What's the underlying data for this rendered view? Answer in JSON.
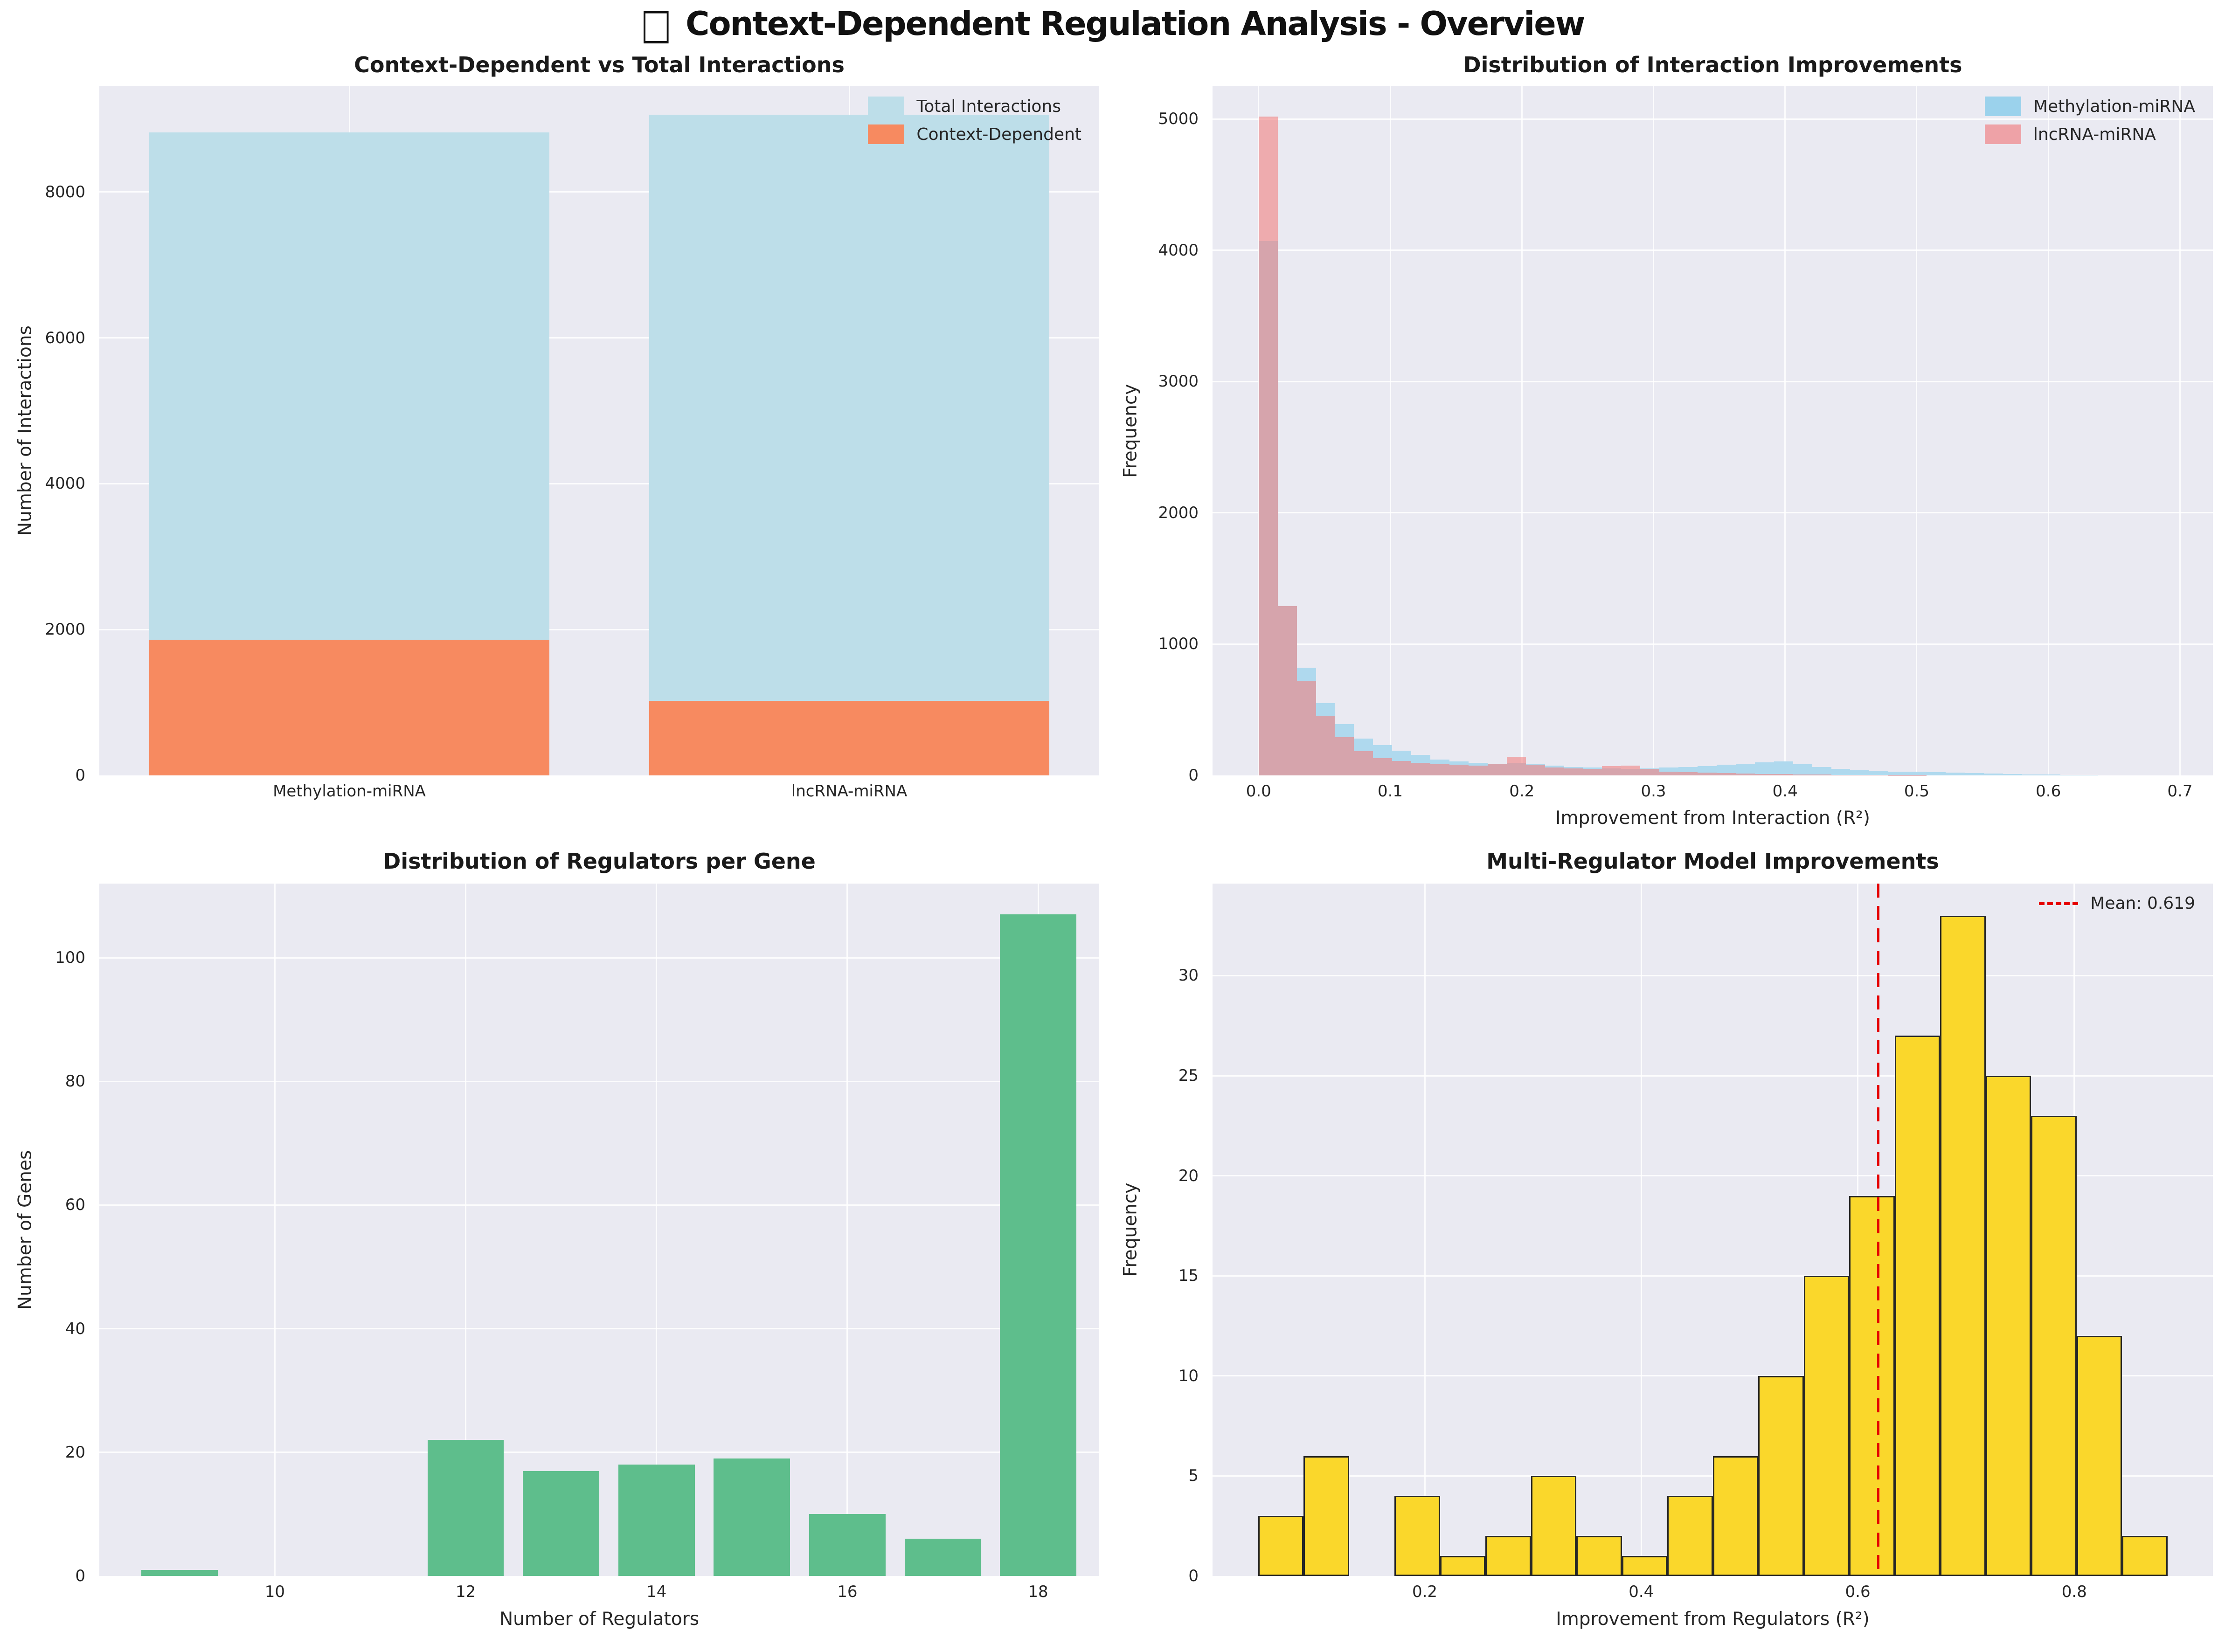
{
  "suptitle_glyph": "□",
  "suptitle": "Context-Dependent Regulation Analysis - Overview",
  "chart_data": [
    {
      "id": "interactions",
      "type": "grouped_overlay_bar",
      "title": "Context-Dependent vs Total Interactions",
      "ylabel": "Number of Interactions",
      "categories": [
        "Methylation-miRNA",
        "lncRNA-miRNA"
      ],
      "series": [
        {
          "name": "Total Interactions",
          "color": "#BDDEE9",
          "values": [
            8820,
            9060
          ]
        },
        {
          "name": "Context-Dependent",
          "color": "#F78A60",
          "values": [
            1860,
            1020
          ]
        }
      ],
      "bar_width_frac": 0.4,
      "ylim": [
        0,
        9450
      ],
      "ytick_values": [
        0,
        2000,
        4000,
        6000,
        8000
      ],
      "ytick_labels": [
        "0",
        "2000",
        "4000",
        "6000",
        "8000"
      ],
      "legend_position": "upper right",
      "grid": true
    },
    {
      "id": "improvements",
      "type": "overlaid_histogram",
      "title": "Distribution of Interaction Improvements",
      "xlabel": "Improvement from Interaction (R²)",
      "ylabel": "Frequency",
      "bin_start": 0.0,
      "bin_width": 0.0145,
      "series": [
        {
          "name": "Methylation-miRNA",
          "color": "rgb(175,217,238)",
          "legend_color": "#9BD2EC",
          "counts": [
            4070,
            1290,
            820,
            550,
            390,
            280,
            230,
            190,
            155,
            120,
            105,
            95,
            90,
            95,
            85,
            75,
            65,
            60,
            55,
            50,
            55,
            60,
            65,
            70,
            80,
            90,
            100,
            105,
            85,
            65,
            50,
            40,
            35,
            30,
            28,
            25,
            22,
            18,
            14,
            10,
            8,
            6,
            5,
            4
          ]
        },
        {
          "name": "lncRNA-miRNA",
          "color": "rgba(240,128,128,0.6)",
          "legend_color": "#EEA2A7",
          "counts": [
            5020,
            1290,
            720,
            455,
            293,
            186,
            130,
            110,
            95,
            85,
            80,
            75,
            90,
            143,
            80,
            60,
            55,
            50,
            70,
            75,
            50,
            30,
            25,
            20,
            18,
            15,
            12,
            10,
            8,
            6,
            5,
            3,
            2,
            1,
            1,
            0,
            0,
            0,
            0,
            0,
            0,
            0,
            0,
            0
          ]
        }
      ],
      "xlim": [
        -0.035,
        0.725
      ],
      "ylim": [
        0,
        5250
      ],
      "xtick_values": [
        0.0,
        0.1,
        0.2,
        0.3,
        0.4,
        0.5,
        0.6,
        0.7
      ],
      "xtick_labels": [
        "0.0",
        "0.1",
        "0.2",
        "0.3",
        "0.4",
        "0.5",
        "0.6",
        "0.7"
      ],
      "ytick_values": [
        0,
        1000,
        2000,
        3000,
        4000,
        5000
      ],
      "ytick_labels": [
        "0",
        "1000",
        "2000",
        "3000",
        "4000",
        "5000"
      ],
      "legend_position": "upper right",
      "grid": true
    },
    {
      "id": "regulators",
      "type": "bar",
      "title": "Distribution of Regulators per Gene",
      "xlabel": "Number of Regulators",
      "ylabel": "Number of Genes",
      "x": [
        9,
        12,
        13,
        14,
        15,
        16,
        17,
        18
      ],
      "values": [
        1,
        22,
        17,
        18,
        19,
        10,
        6,
        107
      ],
      "bar_width": 0.8,
      "color": "#5EBE8C",
      "xlim": [
        8.16,
        18.64
      ],
      "ylim": [
        0,
        112
      ],
      "xtick_values": [
        10,
        12,
        14,
        16,
        18
      ],
      "xtick_labels": [
        "10",
        "12",
        "14",
        "16",
        "18"
      ],
      "ytick_values": [
        0,
        20,
        40,
        60,
        80,
        100
      ],
      "ytick_labels": [
        "0",
        "20",
        "40",
        "60",
        "80",
        "100"
      ],
      "grid": true
    },
    {
      "id": "multi_regulator",
      "type": "histogram",
      "title": "Multi-Regulator Model Improvements",
      "xlabel": "Improvement from Regulators (R²)",
      "ylabel": "Frequency",
      "bin_start": 0.046,
      "bin_width": 0.042,
      "counts": [
        3,
        6,
        0,
        4,
        1,
        2,
        5,
        2,
        1,
        4,
        6,
        10,
        15,
        19,
        27,
        33,
        25,
        23,
        12,
        2
      ],
      "color": "#FAD72B",
      "edge_color": "#262626",
      "xlim": [
        0.004,
        0.928
      ],
      "ylim": [
        0,
        34.6
      ],
      "xtick_values": [
        0.2,
        0.4,
        0.6,
        0.8
      ],
      "xtick_labels": [
        "0.2",
        "0.4",
        "0.6",
        "0.8"
      ],
      "ytick_values": [
        0,
        5,
        10,
        15,
        20,
        25,
        30
      ],
      "ytick_labels": [
        "0",
        "5",
        "10",
        "15",
        "20",
        "25",
        "30"
      ],
      "mean": {
        "value": 0.619,
        "label": "Mean: 0.619",
        "color": "#E50000"
      },
      "legend_position": "upper right",
      "grid": true
    }
  ]
}
